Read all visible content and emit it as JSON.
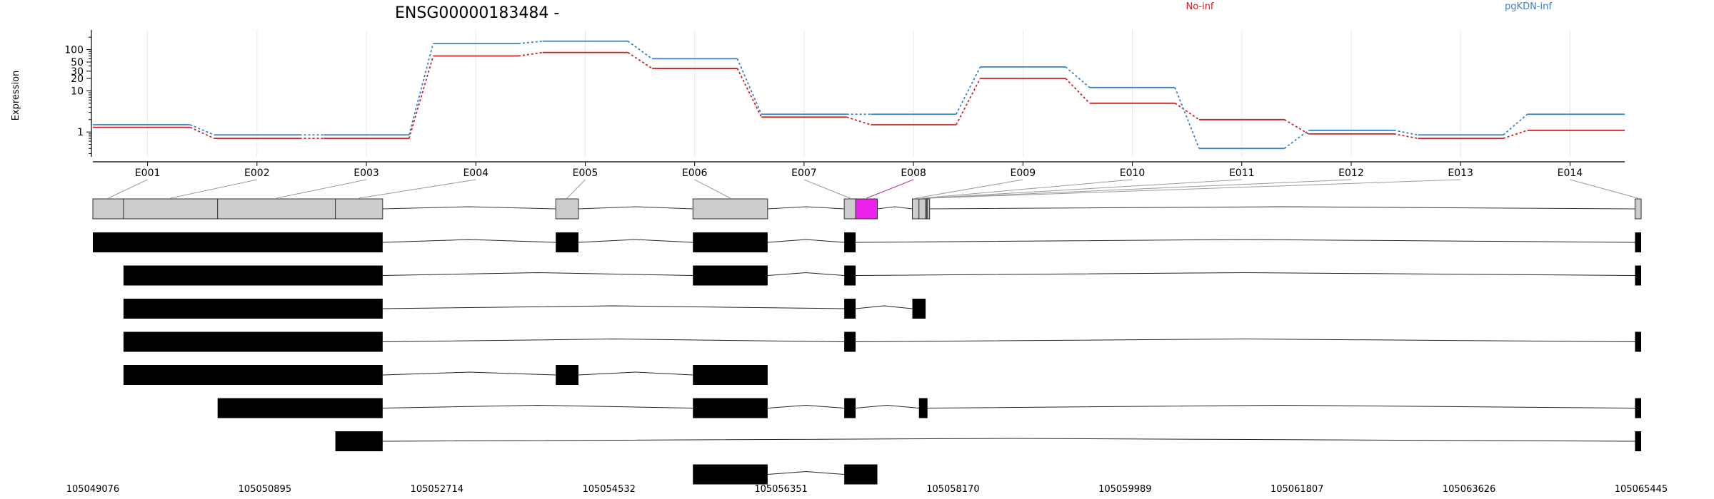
{
  "chart_data": {
    "type": "line",
    "title": "ENSG00000183484 -",
    "ylabel": "Expression",
    "y_scale": "log10",
    "y_ticks": [
      1,
      10,
      20,
      30,
      50,
      100
    ],
    "y_tick_labels": [
      "1",
      "10",
      "20",
      "30",
      "50",
      "100"
    ],
    "ylim": [
      0.25,
      300
    ],
    "grid": true,
    "legend_position": "top-right",
    "categories": [
      "E001",
      "E002",
      "E003",
      "E004",
      "E005",
      "E006",
      "E007",
      "E008",
      "E009",
      "E010",
      "E011",
      "E012",
      "E013",
      "E014"
    ],
    "series": [
      {
        "name": "No-inf",
        "color": "#cc2222",
        "values": [
          1.3,
          0.7,
          0.7,
          70,
          85,
          35,
          2.3,
          1.5,
          20,
          5,
          2,
          0.9,
          0.7,
          1.1
        ]
      },
      {
        "name": "pgKDN-inf",
        "color": "#3a80c8",
        "values": [
          1.5,
          0.85,
          0.85,
          140,
          160,
          60,
          2.7,
          2.7,
          38,
          12,
          0.4,
          1.1,
          0.85,
          2.7
        ]
      }
    ],
    "genomic_axis": {
      "start": 105049076,
      "end": 105065445,
      "tick_labels": [
        "105049076",
        "105050895",
        "105052714",
        "105054532",
        "105056351",
        "105058170",
        "105059989",
        "105061807",
        "105063626",
        "105065445"
      ]
    },
    "exon_bins": [
      {
        "id": "E001",
        "start": 105049076,
        "end": 105049400,
        "highlight": false
      },
      {
        "id": "E002",
        "start": 105049400,
        "end": 105050395,
        "highlight": false
      },
      {
        "id": "E003",
        "start": 105050395,
        "end": 105051640,
        "highlight": false
      },
      {
        "id": "E004",
        "start": 105051640,
        "end": 105052140,
        "highlight": false
      },
      {
        "id": "E005",
        "start": 105053970,
        "end": 105054210,
        "highlight": false
      },
      {
        "id": "E006",
        "start": 105055420,
        "end": 105056210,
        "highlight": false
      },
      {
        "id": "E007",
        "start": 105057020,
        "end": 105057140,
        "highlight": false
      },
      {
        "id": "E008",
        "start": 105057140,
        "end": 105057370,
        "highlight": true
      },
      {
        "id": "E009",
        "start": 105057740,
        "end": 105057810,
        "highlight": false
      },
      {
        "id": "E010",
        "start": 105057810,
        "end": 105057880,
        "highlight": false
      },
      {
        "id": "E011",
        "start": 105057880,
        "end": 105057890,
        "highlight": false
      },
      {
        "id": "E012",
        "start": 105057890,
        "end": 105057900,
        "highlight": false
      },
      {
        "id": "E013",
        "start": 105057900,
        "end": 105057910,
        "highlight": false
      },
      {
        "id": "E014",
        "start": 105065380,
        "end": 105065445,
        "highlight": false
      }
    ],
    "transcripts": [
      {
        "exons": [
          [
            105049076,
            105052140
          ],
          [
            105053970,
            105054210
          ],
          [
            105055420,
            105056210
          ],
          [
            105057020,
            105057140
          ],
          [
            105065380,
            105065445
          ]
        ]
      },
      {
        "exons": [
          [
            105049400,
            105052140
          ],
          [
            105055420,
            105056210
          ],
          [
            105057020,
            105057140
          ],
          [
            105065380,
            105065445
          ]
        ]
      },
      {
        "exons": [
          [
            105049400,
            105052140
          ],
          [
            105057020,
            105057140
          ],
          [
            105057740,
            105057880
          ]
        ]
      },
      {
        "exons": [
          [
            105049400,
            105052140
          ],
          [
            105057020,
            105057140
          ],
          [
            105065380,
            105065445
          ]
        ]
      },
      {
        "exons": [
          [
            105049400,
            105052140
          ],
          [
            105053970,
            105054210
          ],
          [
            105055420,
            105056210
          ]
        ]
      },
      {
        "exons": [
          [
            105050395,
            105052140
          ],
          [
            105055420,
            105056210
          ],
          [
            105057020,
            105057140
          ],
          [
            105057810,
            105057900
          ],
          [
            105065380,
            105065445
          ]
        ]
      },
      {
        "exons": [
          [
            105051640,
            105052140
          ],
          [
            105065380,
            105065445
          ]
        ]
      },
      {
        "exons": [
          [
            105055420,
            105056210
          ],
          [
            105057020,
            105057370
          ]
        ]
      }
    ]
  }
}
